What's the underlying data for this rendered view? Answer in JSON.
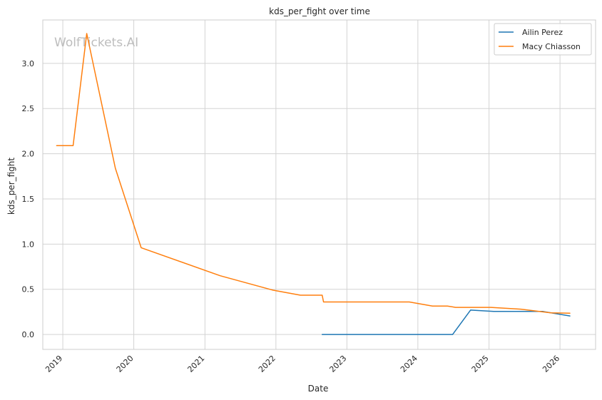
{
  "chart_data": {
    "type": "line",
    "title": "kds_per_fight over time",
    "xlabel": "Date",
    "ylabel": "kds_per_fight",
    "watermark": "WolfTickets.AI",
    "x_range": [
      "2018-09-20",
      "2026-07-03"
    ],
    "ylim": [
      -0.165,
      3.48
    ],
    "x_ticks": [
      "2019",
      "2020",
      "2021",
      "2022",
      "2023",
      "2024",
      "2025",
      "2026"
    ],
    "y_ticks": [
      "0.0",
      "0.5",
      "1.0",
      "1.5",
      "2.0",
      "2.5",
      "3.0"
    ],
    "grid": true,
    "legend_position": "top-right",
    "series": [
      {
        "name": "Ailin Perez",
        "color": "#1f77b4",
        "points": [
          [
            "2022-08-27",
            0.0
          ],
          [
            "2024-06-28",
            0.0
          ],
          [
            "2024-09-28",
            0.27
          ],
          [
            "2025-01-25",
            0.255
          ],
          [
            "2025-10-04",
            0.255
          ],
          [
            "2026-02-21",
            0.205
          ]
        ]
      },
      {
        "name": "Macy Chiasson",
        "color": "#ff7f0e",
        "points": [
          [
            "2018-11-30",
            2.09
          ],
          [
            "2019-02-23",
            2.09
          ],
          [
            "2019-05-04",
            3.33
          ],
          [
            "2019-09-28",
            1.84
          ],
          [
            "2020-02-08",
            0.96
          ],
          [
            "2021-03-20",
            0.65
          ],
          [
            "2021-12-18",
            0.49
          ],
          [
            "2022-05-07",
            0.435
          ],
          [
            "2022-08-27",
            0.435
          ],
          [
            "2022-09-03",
            0.36
          ],
          [
            "2023-11-18",
            0.36
          ],
          [
            "2024-03-16",
            0.315
          ],
          [
            "2024-06-01",
            0.315
          ],
          [
            "2024-07-13",
            0.3
          ],
          [
            "2025-01-11",
            0.3
          ],
          [
            "2025-06-14",
            0.28
          ],
          [
            "2025-11-15",
            0.24
          ],
          [
            "2026-02-21",
            0.235
          ]
        ]
      }
    ]
  }
}
